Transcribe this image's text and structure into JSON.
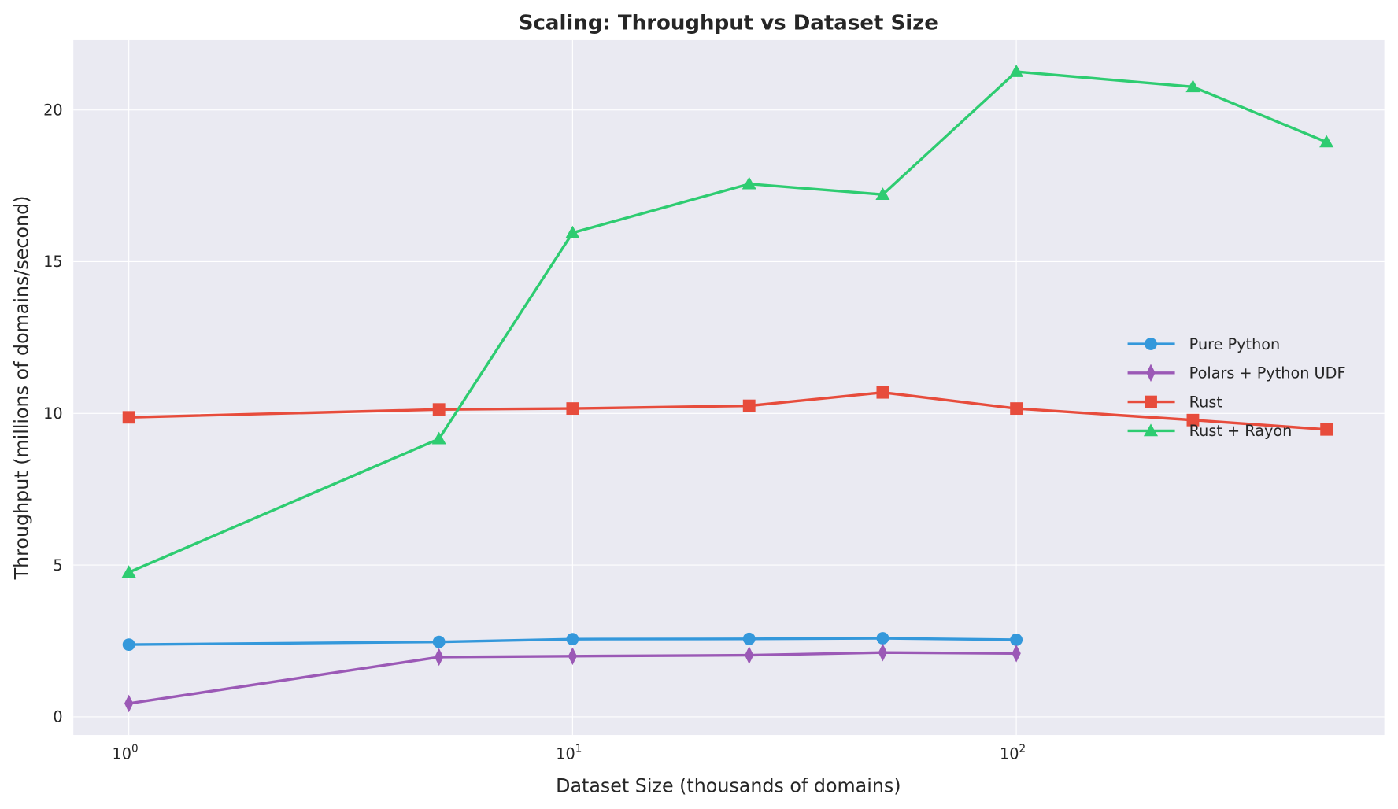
{
  "chart_data": {
    "type": "line",
    "title": "Scaling: Throughput vs Dataset Size",
    "xlabel": "Dataset Size (thousands of domains)",
    "ylabel": "Throughput (millions of domains/second)",
    "xscale": "log",
    "xlim": [
      0.75,
      675
    ],
    "ylim": [
      -0.6,
      22.3
    ],
    "xticks": [
      1,
      10,
      100
    ],
    "xtick_labels": [
      "10^0",
      "10^1",
      "10^2"
    ],
    "yticks": [
      0,
      5,
      10,
      15,
      20
    ],
    "ytick_labels": [
      "0",
      "5",
      "10",
      "15",
      "20"
    ],
    "grid": true,
    "legend_placement": "center-right",
    "background": "#eaeaf2",
    "series": [
      {
        "name": "Pure Python",
        "color": "#3498db",
        "marker": "circle",
        "x": [
          1,
          5,
          10,
          25,
          50,
          100
        ],
        "y": [
          2.38,
          2.47,
          2.56,
          2.57,
          2.59,
          2.54
        ]
      },
      {
        "name": "Polars + Python UDF",
        "color": "#9b59b6",
        "marker": "thin-diamond",
        "x": [
          1,
          5,
          10,
          25,
          50,
          100
        ],
        "y": [
          0.44,
          1.97,
          2.0,
          2.03,
          2.12,
          2.09
        ]
      },
      {
        "name": "Rust",
        "color": "#e74c3c",
        "marker": "square",
        "x": [
          1,
          5,
          10,
          25,
          50,
          100,
          250,
          500
        ],
        "y": [
          9.87,
          10.13,
          10.16,
          10.25,
          10.69,
          10.16,
          9.78,
          9.47
        ]
      },
      {
        "name": "Rust + Rayon",
        "color": "#2ecc71",
        "marker": "triangle",
        "x": [
          1,
          5,
          10,
          25,
          50,
          100,
          250,
          500
        ],
        "y": [
          4.76,
          9.16,
          15.95,
          17.56,
          17.21,
          21.26,
          20.76,
          18.94
        ]
      }
    ]
  }
}
